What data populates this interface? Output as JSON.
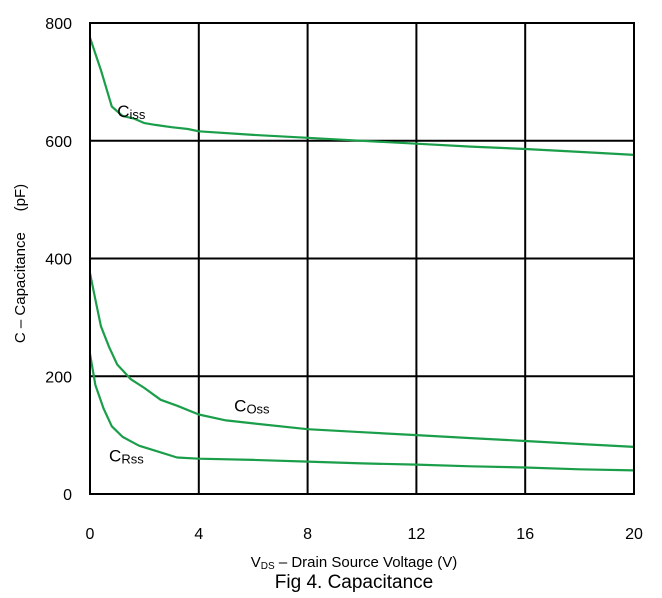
{
  "chart_data": {
    "type": "line",
    "title": "Fig 4. Capacitance",
    "xlabel": {
      "main": "V",
      "sub": "DS",
      "rest": " – Drain Source Voltage (V)"
    },
    "ylabel": "C – Capacitance     (pF)",
    "xlim": [
      0,
      20
    ],
    "ylim": [
      0,
      800
    ],
    "xticks": [
      0,
      4,
      8,
      12,
      16,
      20
    ],
    "yticks": [
      0,
      200,
      400,
      600,
      800
    ],
    "grid": true,
    "line_color": "#1a9e4a",
    "series": [
      {
        "name": "Ciss",
        "label_main": "C",
        "label_sub": "iss",
        "label_at": [
          1.0,
          640
        ],
        "x": [
          0,
          0.4,
          0.8,
          1.2,
          1.6,
          2.0,
          2.4,
          3.0,
          3.6,
          4.0,
          6,
          8,
          10,
          12,
          14,
          16,
          18,
          20
        ],
        "y": [
          775,
          720,
          658,
          642,
          638,
          630,
          627,
          623,
          620,
          616,
          610,
          605,
          600,
          595,
          590,
          586,
          581,
          576
        ]
      },
      {
        "name": "COss",
        "label_main": "C",
        "label_sub": "Oss",
        "label_at": [
          5.3,
          140
        ],
        "x": [
          0,
          0.2,
          0.4,
          0.7,
          1.0,
          1.5,
          2.0,
          2.6,
          3.2,
          4.0,
          5,
          6,
          8,
          10,
          12,
          14,
          16,
          18,
          20
        ],
        "y": [
          375,
          330,
          285,
          250,
          220,
          195,
          180,
          160,
          150,
          135,
          125,
          120,
          110,
          105,
          100,
          95,
          90,
          85,
          80
        ]
      },
      {
        "name": "CRss",
        "label_main": "C",
        "label_sub": "Rss",
        "label_at": [
          0.7,
          55
        ],
        "x": [
          0,
          0.2,
          0.5,
          0.8,
          1.2,
          1.8,
          2.5,
          3.2,
          4,
          6,
          8,
          10,
          12,
          14,
          16,
          18,
          20
        ],
        "y": [
          238,
          185,
          145,
          115,
          97,
          82,
          72,
          62,
          60,
          58,
          55,
          52,
          50,
          47,
          45,
          42,
          40
        ]
      }
    ]
  }
}
